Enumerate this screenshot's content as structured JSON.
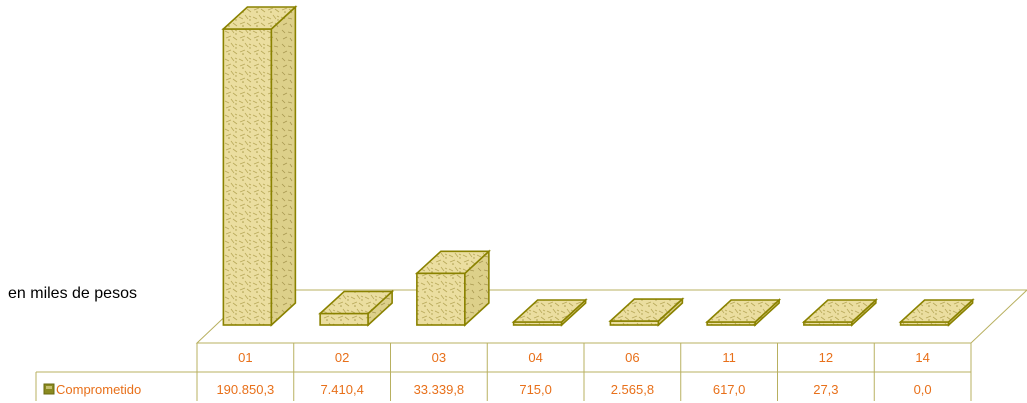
{
  "chart_data": {
    "type": "bar",
    "ylabel": "en miles de pesos",
    "categories": [
      "01",
      "02",
      "03",
      "04",
      "06",
      "11",
      "12",
      "14"
    ],
    "series": [
      {
        "name": "Comprometido",
        "values": [
          190850.3,
          7410.4,
          33339.8,
          715.0,
          2565.8,
          617.0,
          27.3,
          0.0
        ],
        "labels": [
          "190.850,3",
          "7.410,4",
          "33.339,8",
          "715,0",
          "2.565,8",
          "617,0",
          "27,3",
          "0,0"
        ]
      }
    ],
    "ylim": [
      0,
      190850.3
    ],
    "style": "3d-column-with-data-table",
    "colors": {
      "bar_face": "#e9dc9a",
      "bar_texture": "#c9b966",
      "bar_edge": "#8a8200",
      "table_line": "#b8b060",
      "text": "#e8701a",
      "legend_key": "#8a8a20"
    }
  }
}
